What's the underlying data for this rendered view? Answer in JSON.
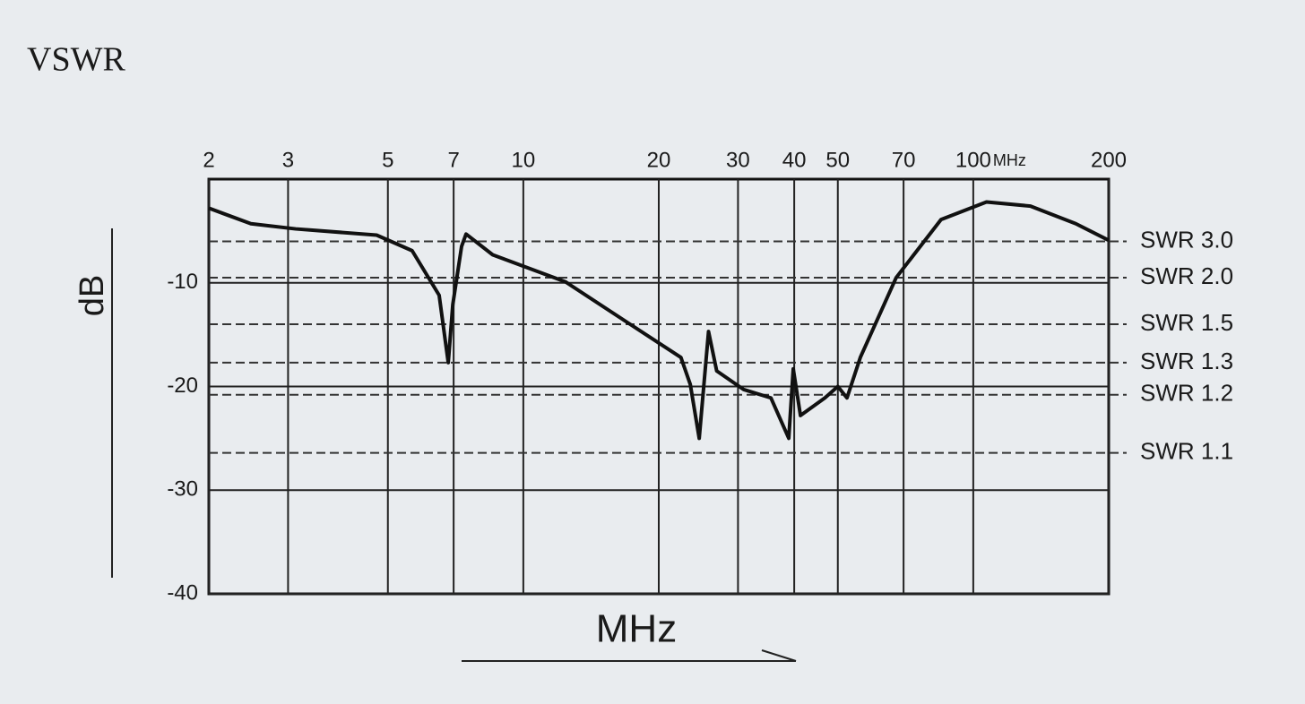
{
  "chart_data": {
    "type": "line",
    "title": "VSWR",
    "xlabel": "MHz",
    "ylabel": "dB",
    "x_unit_label": "MHz",
    "xscale": "log",
    "grid": true,
    "color": "#111111",
    "xlim": [
      2,
      200
    ],
    "xticks": [
      2,
      3,
      5,
      7,
      10,
      20,
      30,
      40,
      50,
      70,
      100,
      200
    ],
    "ylim": [
      -40,
      0
    ],
    "yticks": [
      -10,
      -20,
      -30,
      -40
    ],
    "reference_lines": [
      {
        "label": "SWR 3.0",
        "value": -6.0
      },
      {
        "label": "SWR 2.0",
        "value": -9.5
      },
      {
        "label": "SWR 1.5",
        "value": -14.0
      },
      {
        "label": "SWR 1.3",
        "value": -17.7
      },
      {
        "label": "SWR 1.2",
        "value": -20.8
      },
      {
        "label": "SWR 1.1",
        "value": -26.4
      }
    ],
    "x": [
      2,
      2.48,
      3.12,
      4.72,
      5.66,
      6.5,
      6.81,
      6.97,
      7.29,
      7.46,
      8.55,
      12.4,
      17,
      22.4,
      23.5,
      24.6,
      25.8,
      26.9,
      30.9,
      35.5,
      38.9,
      39.8,
      41.3,
      46.8,
      50,
      52.4,
      56.1,
      67.4,
      84.8,
      107,
      134,
      169,
      200
    ],
    "values": [
      -2.8,
      -4.3,
      -4.8,
      -5.4,
      -6.9,
      -11.2,
      -17.7,
      -12.1,
      -6.5,
      -5.3,
      -7.3,
      -9.9,
      -13.8,
      -17.2,
      -19.8,
      -25.0,
      -14.7,
      -18.5,
      -20.3,
      -21.1,
      -25.0,
      -18.3,
      -22.8,
      -21.1,
      -20.0,
      -21.1,
      -17.2,
      -9.5,
      -3.9,
      -2.2,
      -2.6,
      -4.3,
      -5.9
    ]
  }
}
